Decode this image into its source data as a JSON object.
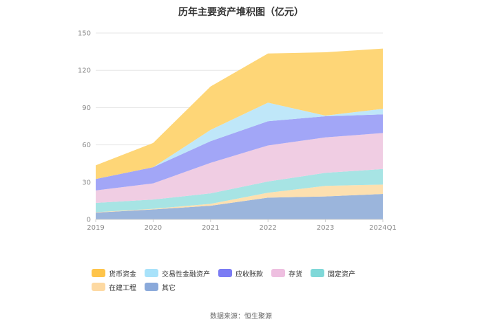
{
  "chart_data": {
    "type": "area",
    "stacked": true,
    "title": "历年主要资产堆积图（亿元）",
    "categories": [
      "2019",
      "2020",
      "2021",
      "2022",
      "2023",
      "2024Q1"
    ],
    "yticks": [
      "0",
      "30",
      "60",
      "90",
      "120",
      "150"
    ],
    "ylim": [
      0,
      150
    ],
    "grid": true,
    "legend_position": "bottom",
    "series": [
      {
        "name": "其它",
        "color": "#9bb5dc",
        "values": [
          5.5,
          8,
          11,
          17.5,
          18.5,
          20.5
        ]
      },
      {
        "name": "在建工程",
        "color": "#fde0b0",
        "values": [
          0.3,
          0.5,
          1.5,
          4,
          8.5,
          7.5
        ]
      },
      {
        "name": "固定资产",
        "color": "#a7e4e4",
        "values": [
          7.5,
          7.5,
          8.5,
          9,
          10.5,
          12.5
        ]
      },
      {
        "name": "存货",
        "color": "#f0cde3",
        "values": [
          10,
          13,
          24.5,
          29,
          28.5,
          29
        ]
      },
      {
        "name": "应收账款",
        "color": "#a2a6f7",
        "values": [
          9.2,
          13,
          17.5,
          19.5,
          17,
          15
        ]
      },
      {
        "name": "交易性金融资产",
        "color": "#bfe7f9",
        "values": [
          0,
          0,
          9,
          15,
          0.5,
          4.5
        ]
      },
      {
        "name": "货币资金",
        "color": "#fed677",
        "values": [
          11,
          19.5,
          35,
          39.5,
          51,
          48.5
        ]
      }
    ]
  },
  "legend": {
    "items": [
      {
        "label": "货币资金",
        "color": "#fec44a"
      },
      {
        "label": "交易性金融资产",
        "color": "#a8e2fa"
      },
      {
        "label": "应收账款",
        "color": "#7b7cf4"
      },
      {
        "label": "存货",
        "color": "#eebfe0"
      },
      {
        "label": "固定资产",
        "color": "#7fd8d8"
      },
      {
        "label": "在建工程",
        "color": "#fdd9a2"
      },
      {
        "label": "其它",
        "color": "#8aa9da"
      }
    ]
  },
  "source": "数据来源：恒生聚源"
}
